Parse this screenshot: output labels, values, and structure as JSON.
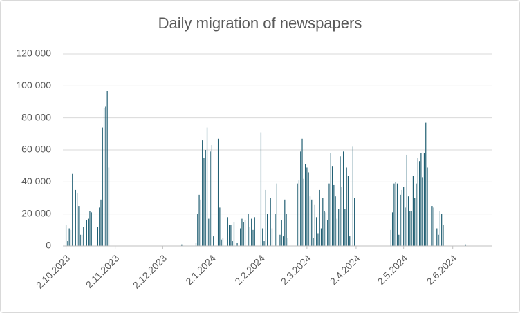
{
  "chart_data": {
    "type": "bar",
    "title": "Daily migration of newspapers",
    "color": "#215f73",
    "x": [
      "2.10.2023",
      "3.10.2023",
      "4.10.2023",
      "5.10.2023",
      "6.10.2023",
      "8.10.2023",
      "9.10.2023",
      "10.10.2023",
      "11.10.2023",
      "12.10.2023",
      "13.10.2023",
      "15.10.2023",
      "16.10.2023",
      "17.10.2023",
      "18.10.2023",
      "22.10.2023",
      "23.10.2023",
      "24.10.2023",
      "25.10.2023",
      "26.10.2023",
      "27.10.2023",
      "28.10.2023",
      "29.10.2023",
      "14.12.2023",
      "23.12.2023",
      "24.12.2023",
      "25.12.2023",
      "26.12.2023",
      "27.12.2023",
      "28.12.2023",
      "29.12.2023",
      "30.12.2023",
      "31.12.2023",
      "1.1.2024",
      "2.1.2024",
      "3.1.2024",
      "6.1.2024",
      "7.1.2024",
      "8.1.2024",
      "9.1.2024",
      "12.1.2024",
      "13.1.2024",
      "14.1.2024",
      "15.1.2024",
      "16.1.2024",
      "18.1.2024",
      "20.1.2024",
      "21.1.2024",
      "22.1.2024",
      "23.1.2024",
      "25.1.2024",
      "26.1.2024",
      "27.1.2024",
      "28.1.2024",
      "29.1.2024",
      "2.2.2024",
      "3.2.2024",
      "4.2.2024",
      "5.2.2024",
      "6.2.2024",
      "8.2.2024",
      "9.2.2024",
      "11.2.2024",
      "12.2.2024",
      "14.2.2024",
      "15.2.2024",
      "16.2.2024",
      "17.2.2024",
      "18.2.2024",
      "19.2.2024",
      "25.2.2024",
      "26.2.2024",
      "27.2.2024",
      "28.2.2024",
      "29.2.2024",
      "1.3.2024",
      "2.3.2024",
      "3.3.2024",
      "4.3.2024",
      "5.3.2024",
      "6.3.2024",
      "7.3.2024",
      "8.3.2024",
      "9.3.2024",
      "10.3.2024",
      "11.3.2024",
      "12.3.2024",
      "13.3.2024",
      "14.3.2024",
      "15.3.2024",
      "16.3.2024",
      "17.3.2024",
      "18.3.2024",
      "19.3.2024",
      "20.3.2024",
      "21.3.2024",
      "22.3.2024",
      "23.3.2024",
      "24.3.2024",
      "25.3.2024",
      "26.3.2024",
      "27.3.2024",
      "28.3.2024",
      "29.3.2024",
      "31.3.2024",
      "1.4.2024",
      "24.4.2024",
      "25.4.2024",
      "26.4.2024",
      "27.4.2024",
      "28.4.2024",
      "29.4.2024",
      "30.4.2024",
      "1.5.2024",
      "2.5.2024",
      "3.5.2024",
      "4.5.2024",
      "5.5.2024",
      "6.5.2024",
      "7.5.2024",
      "8.5.2024",
      "9.5.2024",
      "10.5.2024",
      "11.5.2024",
      "12.5.2024",
      "13.5.2024",
      "14.5.2024",
      "15.5.2024",
      "16.5.2024",
      "17.5.2024",
      "20.5.2024",
      "21.5.2024",
      "23.5.2024",
      "24.5.2024",
      "25.5.2024",
      "26.5.2024",
      "27.5.2024",
      "10.6.2024"
    ],
    "values": [
      13000,
      3000,
      11000,
      10000,
      45000,
      35000,
      33000,
      25000,
      7000,
      7000,
      12000,
      16000,
      17000,
      22000,
      21000,
      12000,
      24000,
      29000,
      74000,
      86000,
      87000,
      97000,
      49000,
      1000,
      2000,
      20000,
      32000,
      29000,
      66000,
      55000,
      60000,
      74000,
      17000,
      59000,
      63000,
      6000,
      67000,
      24000,
      4000,
      5000,
      18000,
      13000,
      13000,
      3000,
      15000,
      2000,
      11000,
      17000,
      15000,
      16000,
      20000,
      12000,
      17000,
      10000,
      18000,
      71000,
      11000,
      3000,
      35000,
      20000,
      30000,
      11000,
      20000,
      39000,
      7000,
      16000,
      6000,
      29000,
      20000,
      5000,
      39000,
      41000,
      59000,
      67000,
      42000,
      51000,
      49000,
      46000,
      31000,
      29000,
      5000,
      26000,
      18000,
      8000,
      35000,
      11000,
      30000,
      22000,
      21000,
      16000,
      39000,
      58000,
      50000,
      38000,
      31000,
      17000,
      23000,
      56000,
      37000,
      59000,
      23000,
      49000,
      44000,
      6000,
      62000,
      30000,
      10000,
      21000,
      39000,
      40000,
      39000,
      7000,
      32000,
      35000,
      37000,
      24000,
      57000,
      31000,
      22000,
      22000,
      44000,
      30000,
      39000,
      55000,
      53000,
      58000,
      43000,
      58000,
      77000,
      49000,
      25000,
      24000,
      11000,
      7000,
      22000,
      20000,
      13000,
      1000
    ],
    "xlim": [
      "30.9.2023",
      "27.6.2024"
    ],
    "xticks": [
      "2.10.2023",
      "2.11.2023",
      "2.12.2023",
      "2.1.2024",
      "2.2.2024",
      "2.3.2024",
      "2.4.2024",
      "2.5.2024",
      "2.6.2024"
    ],
    "ylim": [
      0,
      120000
    ],
    "yticks": [
      0,
      {
        "value": 20000,
        "label": "20 000"
      },
      {
        "value": 40000,
        "label": "40 000"
      },
      {
        "value": 60000,
        "label": "60 000"
      },
      {
        "value": 80000,
        "label": "80 000"
      },
      {
        "value": 100000,
        "label": "100 000"
      },
      {
        "value": 120000,
        "label": "120 000"
      }
    ],
    "grid": true
  }
}
